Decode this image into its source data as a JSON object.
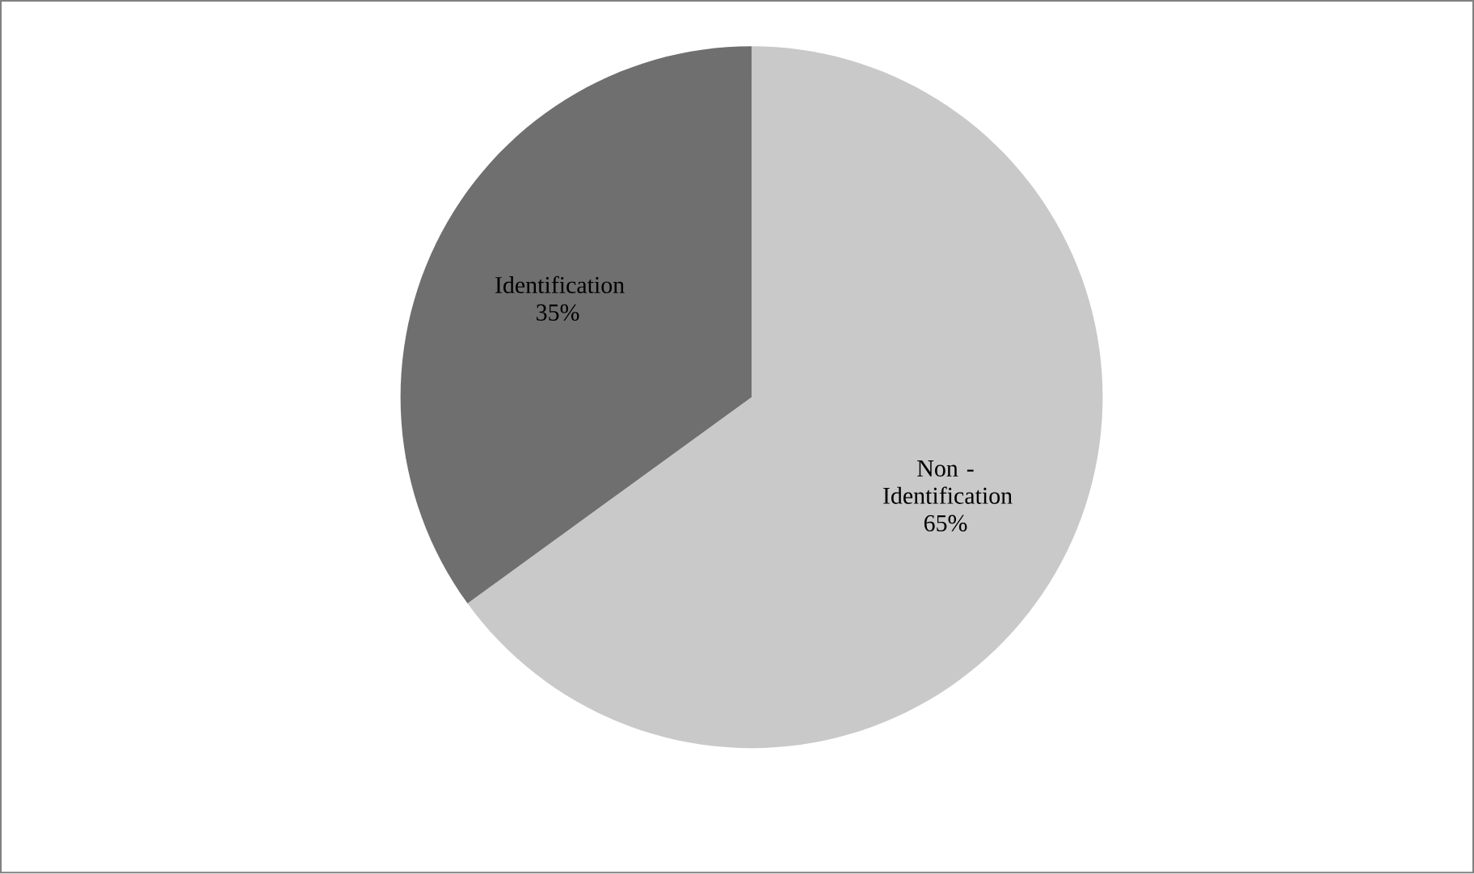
{
  "chart_data": {
    "type": "pie",
    "categories": [
      "Non - Identification",
      "Identification"
    ],
    "values": [
      65,
      35
    ],
    "value_labels": [
      "65%",
      "35%"
    ],
    "colors": [
      "#c9c9c9",
      "#6f6f6f"
    ]
  }
}
